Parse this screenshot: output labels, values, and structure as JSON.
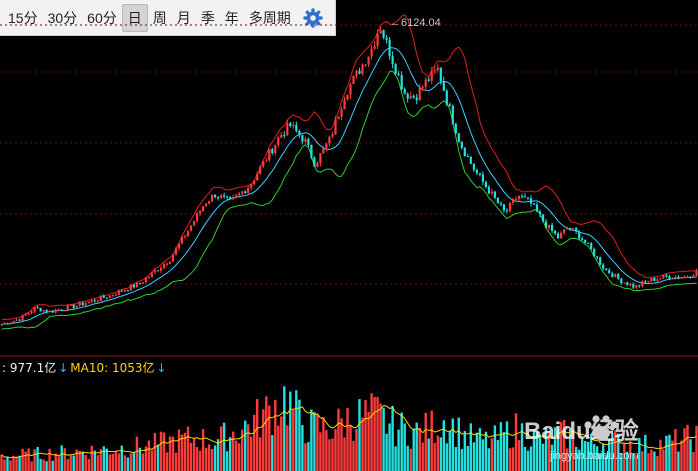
{
  "toolbar": {
    "tabs": [
      "15分",
      "30分",
      "60分",
      "日",
      "周",
      "月",
      "季",
      "年",
      "多周期"
    ],
    "active_tab": "日",
    "settings_icon": "gear-icon"
  },
  "volume": {
    "vol_text": ": 977.1亿",
    "ma10_text": "MA10: 1053亿",
    "arrow": "↓"
  },
  "watermark": {
    "main": "Baidu经验",
    "sub": "jingyan.baidu.com"
  },
  "chart_data": {
    "type": "candlestick",
    "price_peak_label": "6124.04",
    "overlays": [
      "price",
      "upper band",
      "middle band",
      "lower band"
    ],
    "colors": {
      "up": "#ff3b3b",
      "down": "#24e1e1",
      "upper": "#e02020",
      "mid": "#3ad0ff",
      "lower": "#32cd32",
      "vol_ma": "#ffd400",
      "grid": "#6b0f0f"
    },
    "price_anchors": [
      [
        0,
        1860
      ],
      [
        20,
        1950
      ],
      [
        35,
        2100
      ],
      [
        50,
        2050
      ],
      [
        80,
        2150
      ],
      [
        110,
        2280
      ],
      [
        140,
        2450
      ],
      [
        170,
        2800
      ],
      [
        190,
        3250
      ],
      [
        205,
        3600
      ],
      [
        215,
        3720
      ],
      [
        230,
        3600
      ],
      [
        250,
        3850
      ],
      [
        265,
        4200
      ],
      [
        280,
        4550
      ],
      [
        290,
        4700
      ],
      [
        305,
        4480
      ],
      [
        315,
        4150
      ],
      [
        330,
        4500
      ],
      [
        345,
        5150
      ],
      [
        360,
        5500
      ],
      [
        372,
        5800
      ],
      [
        380,
        6124
      ],
      [
        392,
        5650
      ],
      [
        405,
        5150
      ],
      [
        415,
        5100
      ],
      [
        425,
        5300
      ],
      [
        438,
        5500
      ],
      [
        448,
        5000
      ],
      [
        460,
        4450
      ],
      [
        475,
        4050
      ],
      [
        490,
        3750
      ],
      [
        505,
        3450
      ],
      [
        518,
        3700
      ],
      [
        530,
        3600
      ],
      [
        545,
        3300
      ],
      [
        558,
        3100
      ],
      [
        568,
        3250
      ],
      [
        578,
        3150
      ],
      [
        590,
        2950
      ],
      [
        605,
        2650
      ],
      [
        620,
        2500
      ],
      [
        635,
        2400
      ],
      [
        650,
        2500
      ],
      [
        668,
        2550
      ],
      [
        684,
        2540
      ],
      [
        698,
        2620
      ]
    ],
    "volume_anchors": [
      [
        0,
        0.16
      ],
      [
        30,
        0.18
      ],
      [
        60,
        0.2
      ],
      [
        100,
        0.23
      ],
      [
        150,
        0.28
      ],
      [
        190,
        0.36
      ],
      [
        215,
        0.33
      ],
      [
        240,
        0.45
      ],
      [
        265,
        0.62
      ],
      [
        285,
        0.8
      ],
      [
        305,
        0.5
      ],
      [
        330,
        0.46
      ],
      [
        350,
        0.58
      ],
      [
        375,
        0.62
      ],
      [
        395,
        0.48
      ],
      [
        420,
        0.42
      ],
      [
        445,
        0.56
      ],
      [
        465,
        0.38
      ],
      [
        490,
        0.32
      ],
      [
        515,
        0.46
      ],
      [
        540,
        0.34
      ],
      [
        565,
        0.4
      ],
      [
        590,
        0.3
      ],
      [
        615,
        0.33
      ],
      [
        640,
        0.28
      ],
      [
        665,
        0.3
      ],
      [
        698,
        0.38
      ]
    ]
  }
}
